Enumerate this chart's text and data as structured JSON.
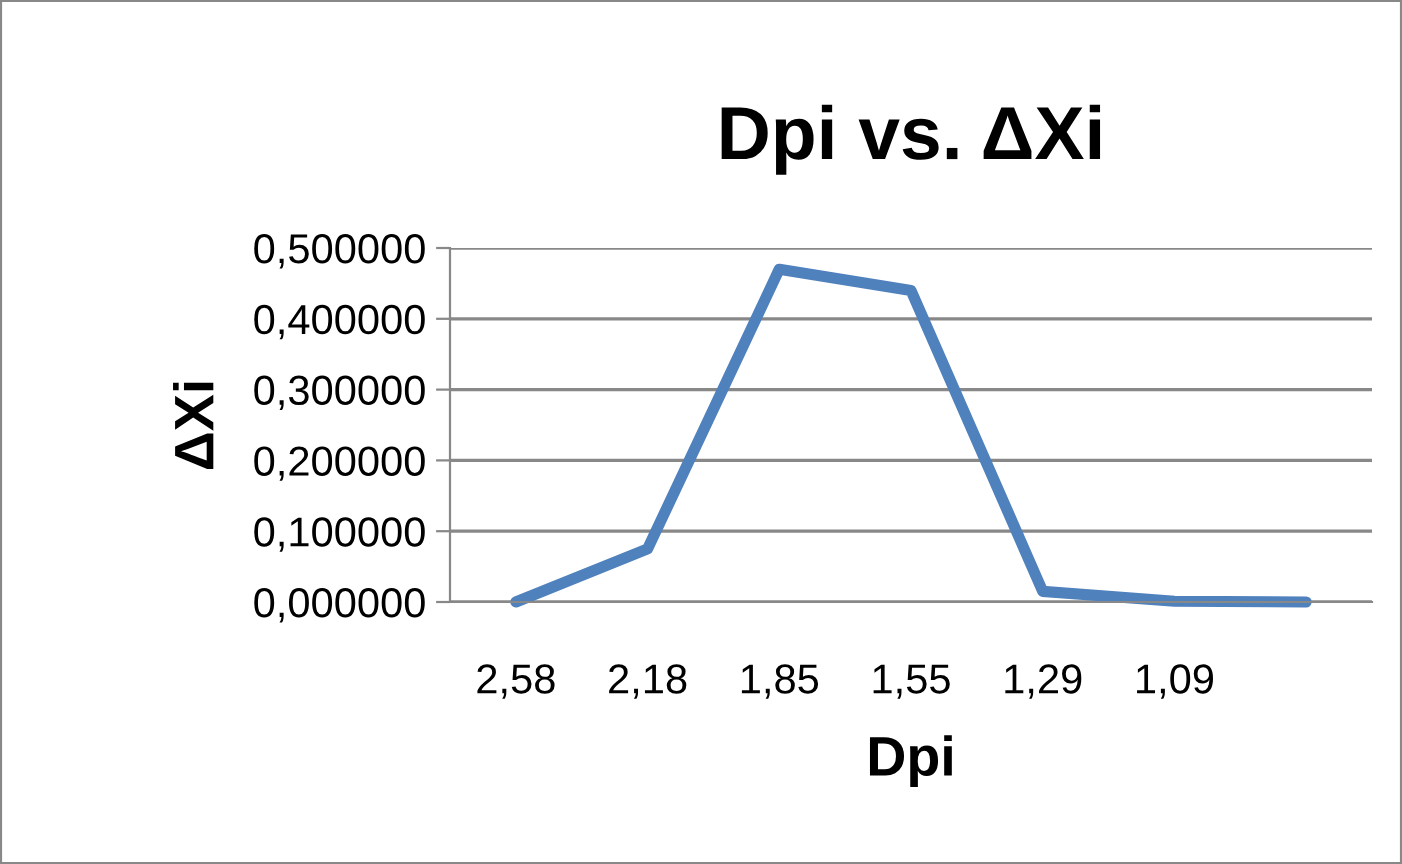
{
  "chart_data": {
    "type": "line",
    "title": "Dpi vs. ΔXi",
    "xlabel": "Dpi",
    "ylabel": "ΔXi",
    "categories": [
      "2,58",
      "2,18",
      "1,85",
      "1,55",
      "1,29",
      "1,09",
      null
    ],
    "series": [
      {
        "color": "#4f81bd",
        "values": [
          0.0,
          0.075,
          0.47,
          0.44,
          0.015,
          0.001,
          0.0
        ]
      }
    ],
    "ylim": [
      0,
      0.5
    ],
    "yticks": [
      {
        "value": 0,
        "label": "0,000000"
      },
      {
        "value": 0.1,
        "label": "0,100000"
      },
      {
        "value": 0.2,
        "label": "0,200000"
      },
      {
        "value": 0.3,
        "label": "0,300000"
      },
      {
        "value": 0.4,
        "label": "0,400000"
      },
      {
        "value": 0.5,
        "label": "0,500000"
      }
    ],
    "grid": "y",
    "legend": false,
    "marker": "none",
    "line_style": "solid"
  }
}
